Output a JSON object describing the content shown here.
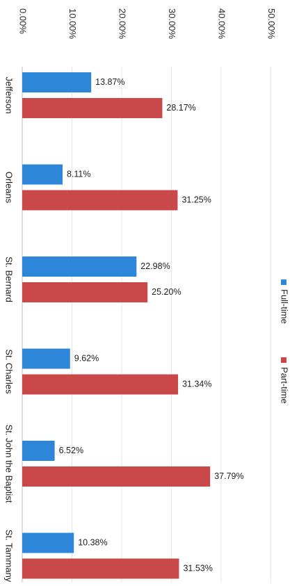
{
  "chart_data": {
    "type": "bar",
    "orientation": "horizontal",
    "categories": [
      "Jefferson",
      "Orleans",
      "St. Bernard",
      "St. Charles",
      "St. John the Baptist",
      "St. Tammany"
    ],
    "series": [
      {
        "name": "Full-time",
        "color": "#2e86d8",
        "values": [
          13.87,
          8.11,
          22.98,
          9.62,
          6.52,
          10.38
        ],
        "labels": [
          "13.87%",
          "8.11%",
          "22.98%",
          "9.62%",
          "6.52%",
          "10.38%"
        ]
      },
      {
        "name": "Part-time",
        "color": "#c9484a",
        "values": [
          28.17,
          31.25,
          25.2,
          31.34,
          37.79,
          31.53
        ],
        "labels": [
          "28.17%",
          "31.25%",
          "25.20%",
          "31.34%",
          "37.79%",
          "31.53%"
        ]
      }
    ],
    "value_axis": {
      "min": 0,
      "max": 50,
      "ticks": [
        0,
        10,
        20,
        30,
        40,
        50
      ],
      "tick_labels": [
        "0.00%",
        "10.00%",
        "20.00%",
        "30.00%",
        "40.00%",
        "50.00%"
      ]
    },
    "grid": true,
    "legend_placement": "right"
  }
}
